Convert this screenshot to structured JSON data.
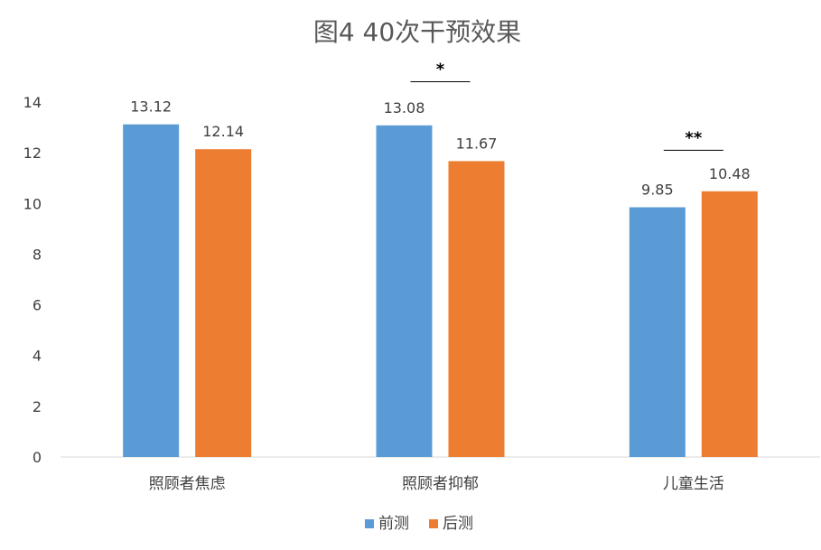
{
  "chart_data": {
    "type": "bar",
    "title": "图4 40次干预效果",
    "xlabel": "",
    "ylabel": "",
    "categories": [
      "照顾者焦虑",
      "照顾者抑郁",
      "儿童生活"
    ],
    "series": [
      {
        "name": "前测",
        "values": [
          13.12,
          13.08,
          9.85
        ],
        "color": "#5b9bd5"
      },
      {
        "name": "后测",
        "values": [
          12.14,
          11.67,
          10.48
        ],
        "color": "#ed7d31"
      }
    ],
    "data_labels": [
      [
        "13.12",
        "12.14"
      ],
      [
        "13.08",
        "11.67"
      ],
      [
        "9.85",
        "10.48"
      ]
    ],
    "ylim": [
      0,
      14
    ],
    "yticks": [
      "0",
      "2",
      "4",
      "6",
      "8",
      "10",
      "12",
      "14"
    ],
    "grid": false,
    "legend_position": "bottom",
    "significance": [
      {
        "category_index": 1,
        "label": "*",
        "bracket_value": 14.8
      },
      {
        "category_index": 2,
        "label": "**",
        "bracket_value": 12.1
      }
    ],
    "colors": {
      "axis": "#d9d9d9",
      "text": "#404040",
      "title": "#595959"
    }
  }
}
